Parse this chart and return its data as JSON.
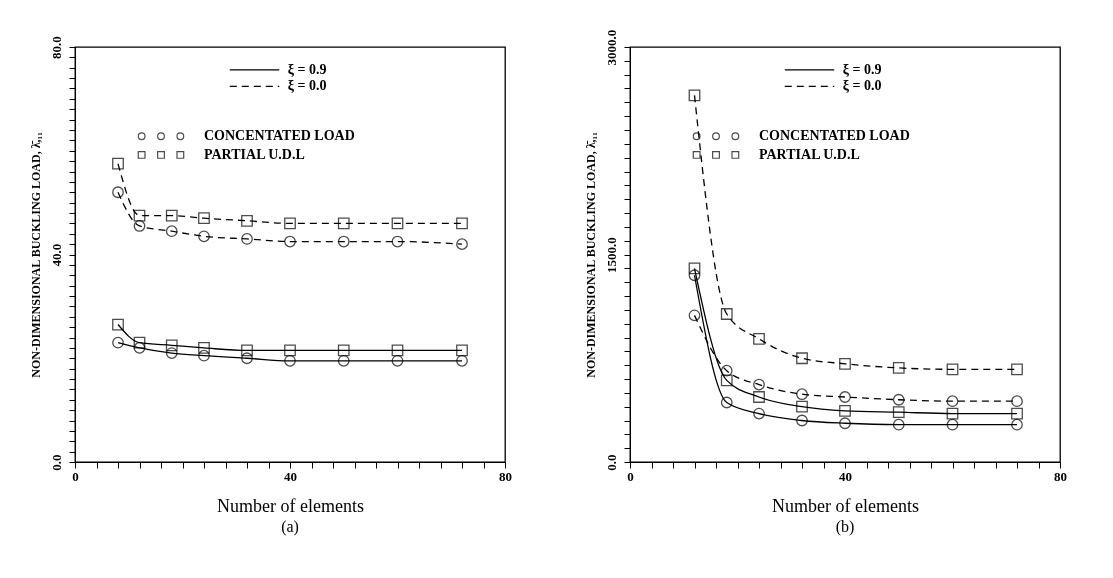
{
  "chart_data": [
    {
      "type": "line",
      "title": "(a)",
      "xlabel": "Number of elements",
      "ylabel": "NON-DIMENSIONAL BUCKLING LOAD, λ̄,₁₁",
      "x": [
        8,
        12,
        18,
        24,
        32,
        40,
        50,
        60,
        72
      ],
      "xlim": [
        0,
        80
      ],
      "ylim": [
        0,
        80
      ],
      "xticks": [
        0,
        {
          "value": 4,
          "label": null
        },
        {
          "value": 8,
          "label": null
        },
        {
          "value": 12,
          "label": null
        },
        {
          "value": 16,
          "label": null
        },
        {
          "value": 20,
          "label": null
        },
        {
          "value": 24,
          "label": null
        },
        {
          "value": 28,
          "label": null
        },
        {
          "value": 32,
          "label": null
        },
        {
          "value": 36,
          "label": null
        },
        40,
        {
          "value": 44,
          "label": null
        },
        {
          "value": 48,
          "label": null
        },
        {
          "value": 52,
          "label": null
        },
        {
          "value": 56,
          "label": null
        },
        {
          "value": 60,
          "label": null
        },
        {
          "value": 64,
          "label": null
        },
        {
          "value": 68,
          "label": null
        },
        {
          "value": 72,
          "label": null
        },
        {
          "value": 76,
          "label": null
        },
        80
      ],
      "yticks": [
        {
          "value": 0,
          "label": "0.0"
        },
        {
          "value": 2,
          "label": null
        },
        {
          "value": 4,
          "label": null
        },
        {
          "value": 6,
          "label": null
        },
        {
          "value": 8,
          "label": null
        },
        {
          "value": 10,
          "label": null
        },
        {
          "value": 12,
          "label": null
        },
        {
          "value": 14,
          "label": null
        },
        {
          "value": 16,
          "label": null
        },
        {
          "value": 18,
          "label": null
        },
        {
          "value": 20,
          "label": null
        },
        {
          "value": 22,
          "label": null
        },
        {
          "value": 24,
          "label": null
        },
        {
          "value": 26,
          "label": null
        },
        {
          "value": 28,
          "label": null
        },
        {
          "value": 30,
          "label": null
        },
        {
          "value": 32,
          "label": null
        },
        {
          "value": 34,
          "label": null
        },
        {
          "value": 36,
          "label": null
        },
        {
          "value": 38,
          "label": null
        },
        {
          "value": 40,
          "label": "40.0"
        },
        {
          "value": 42,
          "label": null
        },
        {
          "value": 44,
          "label": null
        },
        {
          "value": 46,
          "label": null
        },
        {
          "value": 48,
          "label": null
        },
        {
          "value": 50,
          "label": null
        },
        {
          "value": 52,
          "label": null
        },
        {
          "value": 54,
          "label": null
        },
        {
          "value": 56,
          "label": null
        },
        {
          "value": 58,
          "label": null
        },
        {
          "value": 60,
          "label": null
        },
        {
          "value": 62,
          "label": null
        },
        {
          "value": 64,
          "label": null
        },
        {
          "value": 66,
          "label": null
        },
        {
          "value": 68,
          "label": null
        },
        {
          "value": 70,
          "label": null
        },
        {
          "value": 72,
          "label": null
        },
        {
          "value": 74,
          "label": null
        },
        {
          "value": 76,
          "label": null
        },
        {
          "value": 78,
          "label": null
        },
        {
          "value": 80,
          "label": "80.0"
        }
      ],
      "annotations": [
        "ξ = 0.9",
        "ξ = 0.0",
        "CONCENTATED LOAD",
        "PARTIAL U.D.L"
      ],
      "series": [
        {
          "color": "#000000",
          "line_style": "dashed",
          "marker": "square",
          "values": [
            57.5,
            47.5,
            47.5,
            47,
            46.5,
            46,
            46,
            46,
            46
          ]
        },
        {
          "color": "#000000",
          "line_style": "dashed",
          "marker": "circle",
          "values": [
            52,
            45.5,
            44.5,
            43.5,
            43,
            42.5,
            42.5,
            42.5,
            42
          ]
        },
        {
          "color": "#000000",
          "line_style": "solid",
          "marker": "square",
          "values": [
            26.5,
            23,
            22.5,
            22,
            21.5,
            21.5,
            21.5,
            21.5,
            21.5
          ]
        },
        {
          "color": "#000000",
          "line_style": "solid",
          "marker": "circle",
          "values": [
            23,
            22,
            21,
            20.5,
            20,
            19.5,
            19.5,
            19.5,
            19.5
          ]
        }
      ]
    },
    {
      "type": "line",
      "title": "(b)",
      "xlabel": "Number of elements",
      "ylabel": "NON-DIMENSIONAL BUCKLING LOAD, λ̄,₁₁",
      "x": [
        12,
        18,
        24,
        32,
        40,
        50,
        60,
        72
      ],
      "xlim": [
        0,
        80
      ],
      "ylim": [
        0,
        3000
      ],
      "xticks": [
        0,
        {
          "value": 4,
          "label": null
        },
        {
          "value": 8,
          "label": null
        },
        {
          "value": 12,
          "label": null
        },
        {
          "value": 16,
          "label": null
        },
        {
          "value": 20,
          "label": null
        },
        {
          "value": 24,
          "label": null
        },
        {
          "value": 28,
          "label": null
        },
        {
          "value": 32,
          "label": null
        },
        {
          "value": 36,
          "label": null
        },
        40,
        {
          "value": 44,
          "label": null
        },
        {
          "value": 48,
          "label": null
        },
        {
          "value": 52,
          "label": null
        },
        {
          "value": 56,
          "label": null
        },
        {
          "value": 60,
          "label": null
        },
        {
          "value": 64,
          "label": null
        },
        {
          "value": 68,
          "label": null
        },
        {
          "value": 72,
          "label": null
        },
        {
          "value": 76,
          "label": null
        },
        80
      ],
      "yticks": [
        {
          "value": 0,
          "label": "0.0"
        },
        {
          "value": 100,
          "label": null
        },
        {
          "value": 200,
          "label": null
        },
        {
          "value": 300,
          "label": null
        },
        {
          "value": 400,
          "label": null
        },
        {
          "value": 500,
          "label": null
        },
        {
          "value": 600,
          "label": null
        },
        {
          "value": 700,
          "label": null
        },
        {
          "value": 800,
          "label": null
        },
        {
          "value": 900,
          "label": null
        },
        {
          "value": 1000,
          "label": null
        },
        {
          "value": 1100,
          "label": null
        },
        {
          "value": 1200,
          "label": null
        },
        {
          "value": 1300,
          "label": null
        },
        {
          "value": 1400,
          "label": null
        },
        {
          "value": 1500,
          "label": "1500.0"
        },
        {
          "value": 1600,
          "label": null
        },
        {
          "value": 1700,
          "label": null
        },
        {
          "value": 1800,
          "label": null
        },
        {
          "value": 1900,
          "label": null
        },
        {
          "value": 2000,
          "label": null
        },
        {
          "value": 2100,
          "label": null
        },
        {
          "value": 2200,
          "label": null
        },
        {
          "value": 2300,
          "label": null
        },
        {
          "value": 2400,
          "label": null
        },
        {
          "value": 2500,
          "label": null
        },
        {
          "value": 2600,
          "label": null
        },
        {
          "value": 2700,
          "label": null
        },
        {
          "value": 2800,
          "label": null
        },
        {
          "value": 2900,
          "label": null
        },
        {
          "value": 3000,
          "label": "3000.0"
        }
      ],
      "annotations": [
        "ξ = 0.9",
        "ξ = 0.0",
        "CONCENTATED LOAD",
        "PARTIAL U.D.L"
      ],
      "series": [
        {
          "color": "#000000",
          "line_style": "dashed",
          "marker": "square",
          "values": [
            2650,
            1070,
            890,
            750,
            710,
            680,
            670,
            670
          ]
        },
        {
          "color": "#000000",
          "line_style": "dashed",
          "marker": "circle",
          "values": [
            1060,
            660,
            560,
            490,
            470,
            450,
            440,
            440
          ]
        },
        {
          "color": "#000000",
          "line_style": "solid",
          "marker": "square",
          "values": [
            1400,
            590,
            470,
            400,
            370,
            360,
            350,
            350
          ]
        },
        {
          "color": "#000000",
          "line_style": "solid",
          "marker": "circle",
          "values": [
            1350,
            430,
            350,
            300,
            280,
            270,
            270,
            270
          ]
        }
      ]
    }
  ]
}
